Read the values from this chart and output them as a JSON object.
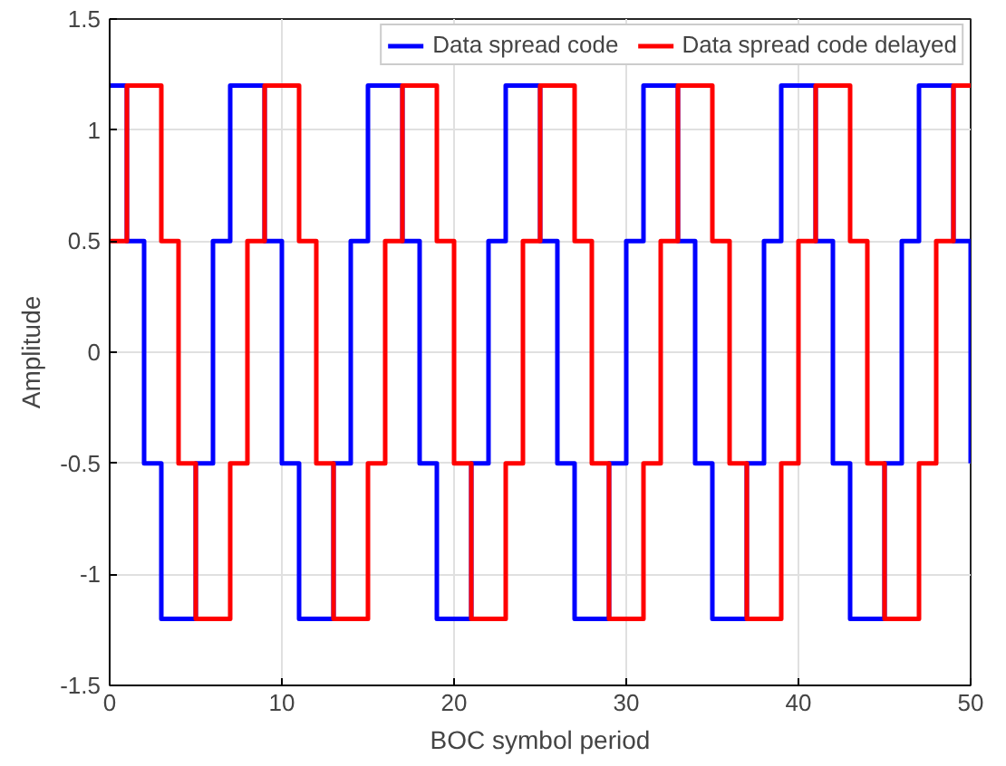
{
  "chart_data": {
    "type": "step",
    "xlabel": "BOC symbol period",
    "ylabel": "Amplitude",
    "x": [
      0,
      1,
      2,
      3,
      4,
      5,
      6,
      7,
      8,
      9,
      10,
      11,
      12,
      13,
      14,
      15,
      16,
      17,
      18,
      19,
      20,
      21,
      22,
      23,
      24,
      25,
      26,
      27,
      28,
      29,
      30,
      31,
      32,
      33,
      34,
      35,
      36,
      37,
      38,
      39,
      40,
      41,
      42,
      43,
      44,
      45,
      46,
      47,
      48,
      49,
      50
    ],
    "series": [
      {
        "name": "Data spread code",
        "color": "#0000ff",
        "values": [
          1.2,
          0.5,
          -0.5,
          -1.2,
          -1.2,
          -0.5,
          0.5,
          1.2,
          1.2,
          0.5,
          -0.5,
          -1.2,
          -1.2,
          -0.5,
          0.5,
          1.2,
          1.2,
          0.5,
          -0.5,
          -1.2,
          -1.2,
          -0.5,
          0.5,
          1.2,
          1.2,
          0.5,
          -0.5,
          -1.2,
          -1.2,
          -0.5,
          0.5,
          1.2,
          1.2,
          0.5,
          -0.5,
          -1.2,
          -1.2,
          -0.5,
          0.5,
          1.2,
          1.2,
          0.5,
          -0.5,
          -1.2,
          -1.2,
          -0.5,
          0.5,
          1.2,
          1.2,
          0.5,
          -0.5
        ]
      },
      {
        "name": "Data spread code delayed",
        "color": "#ff0000",
        "values": [
          0.5,
          1.2,
          1.2,
          0.5,
          -0.5,
          -1.2,
          -1.2,
          -0.5,
          0.5,
          1.2,
          1.2,
          0.5,
          -0.5,
          -1.2,
          -1.2,
          -0.5,
          0.5,
          1.2,
          1.2,
          0.5,
          -0.5,
          -1.2,
          -1.2,
          -0.5,
          0.5,
          1.2,
          1.2,
          0.5,
          -0.5,
          -1.2,
          -1.2,
          -0.5,
          0.5,
          1.2,
          1.2,
          0.5,
          -0.5,
          -1.2,
          -1.2,
          -0.5,
          0.5,
          1.2,
          1.2,
          0.5,
          -0.5,
          -1.2,
          -1.2,
          -0.5,
          0.5,
          1.2,
          1.2
        ]
      }
    ],
    "xlim": [
      0,
      50
    ],
    "xticks": [
      0,
      10,
      20,
      30,
      40,
      50
    ],
    "ylim": [
      -1.5,
      1.5
    ],
    "yticks": [
      -1.5,
      -1,
      -0.5,
      0,
      0.5,
      1,
      1.5
    ],
    "grid": true,
    "legend": "top right"
  }
}
